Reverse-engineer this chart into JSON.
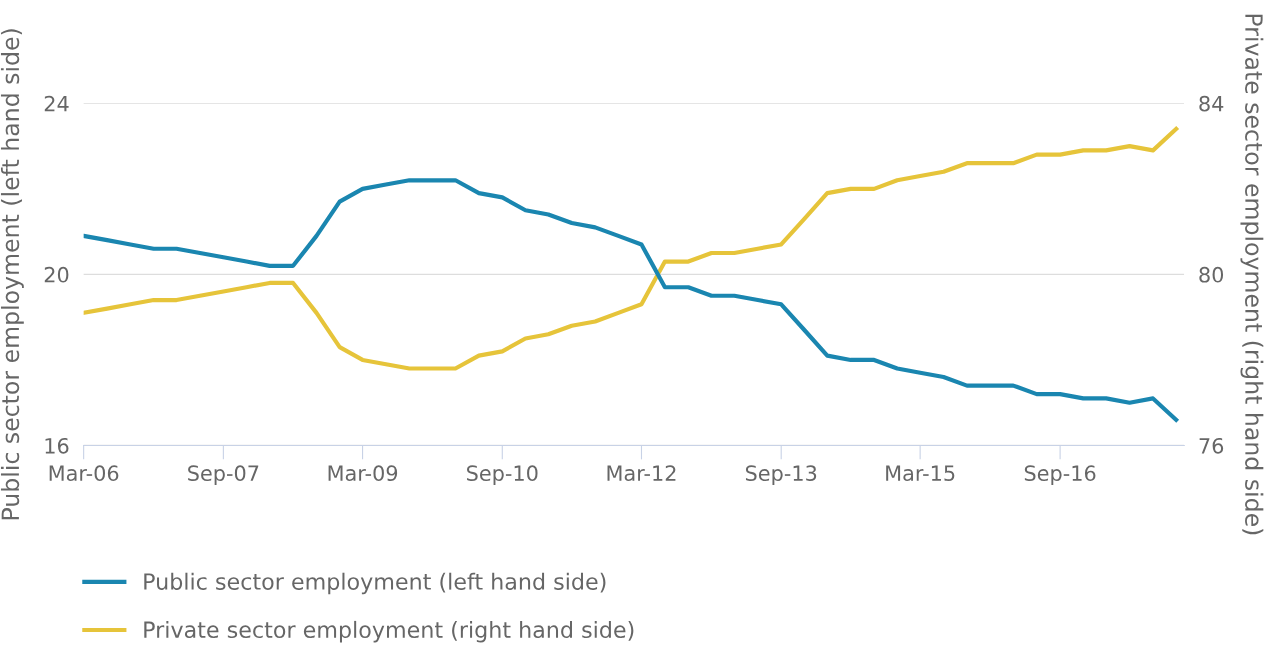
{
  "chart_data": {
    "type": "line",
    "x": [
      "2006-03",
      "2006-06",
      "2006-09",
      "2006-12",
      "2007-03",
      "2007-06",
      "2007-09",
      "2007-12",
      "2008-03",
      "2008-06",
      "2008-09",
      "2008-12",
      "2009-03",
      "2009-06",
      "2009-09",
      "2009-12",
      "2010-03",
      "2010-06",
      "2010-09",
      "2010-12",
      "2011-03",
      "2011-06",
      "2011-09",
      "2011-12",
      "2012-03",
      "2012-06",
      "2012-09",
      "2012-12",
      "2013-03",
      "2013-06",
      "2013-09",
      "2013-12",
      "2014-03",
      "2014-06",
      "2014-09",
      "2014-12",
      "2015-03",
      "2015-06",
      "2015-09",
      "2015-12",
      "2016-03",
      "2016-06",
      "2016-09",
      "2016-12",
      "2017-03",
      "2017-06",
      "2017-09",
      "2017-12"
    ],
    "series": [
      {
        "name": "Public sector employment (left hand side)",
        "color": "#1a86b0",
        "values": [
          20.9,
          20.8,
          20.7,
          20.6,
          20.6,
          20.5,
          20.4,
          20.3,
          20.2,
          20.2,
          20.9,
          21.7,
          22.0,
          22.1,
          22.2,
          22.2,
          22.2,
          21.9,
          21.8,
          21.5,
          21.4,
          21.2,
          21.1,
          20.9,
          20.7,
          19.7,
          19.7,
          19.5,
          19.5,
          19.4,
          19.3,
          18.7,
          18.1,
          18.0,
          18.0,
          17.8,
          17.7,
          17.6,
          17.4,
          17.4,
          17.4,
          17.2,
          17.2,
          17.1,
          17.1,
          17.0,
          17.1,
          16.6
        ]
      },
      {
        "name": "Private sector employment (right hand side)",
        "color": "#e6c43a",
        "axis": "y2",
        "values": [
          79.1,
          79.2,
          79.3,
          79.4,
          79.4,
          79.5,
          79.6,
          79.7,
          79.8,
          79.8,
          79.1,
          78.3,
          78.0,
          77.9,
          77.8,
          77.8,
          77.8,
          78.1,
          78.2,
          78.5,
          78.6,
          78.8,
          78.9,
          79.1,
          79.3,
          80.3,
          80.3,
          80.5,
          80.5,
          80.6,
          80.7,
          81.3,
          81.9,
          82.0,
          82.0,
          82.2,
          82.3,
          82.4,
          82.6,
          82.6,
          82.6,
          82.8,
          82.8,
          82.9,
          82.9,
          83.0,
          82.9,
          83.4
        ]
      }
    ],
    "ylabel": "Public sector employment (left hand side)",
    "y2label": "Private sector employment (right hand side)",
    "ylim": [
      16,
      24
    ],
    "yticks": [
      16,
      20,
      24
    ],
    "y2lim": [
      76,
      84
    ],
    "y2ticks": [
      76,
      80,
      84
    ],
    "xlim": [
      "2006-03",
      "2018-01"
    ],
    "xticks": [
      {
        "value": "2006-03",
        "label": "Mar-06"
      },
      {
        "value": "2007-09",
        "label": "Sep-07"
      },
      {
        "value": "2009-03",
        "label": "Mar-09"
      },
      {
        "value": "2010-09",
        "label": "Sep-10"
      },
      {
        "value": "2012-03",
        "label": "Mar-12"
      },
      {
        "value": "2013-09",
        "label": "Sep-13"
      },
      {
        "value": "2015-03",
        "label": "Mar-15"
      },
      {
        "value": "2016-09",
        "label": "Sep-16"
      }
    ],
    "grid": "y",
    "legend": "bottom",
    "line_style": "solid",
    "marker": "none"
  }
}
